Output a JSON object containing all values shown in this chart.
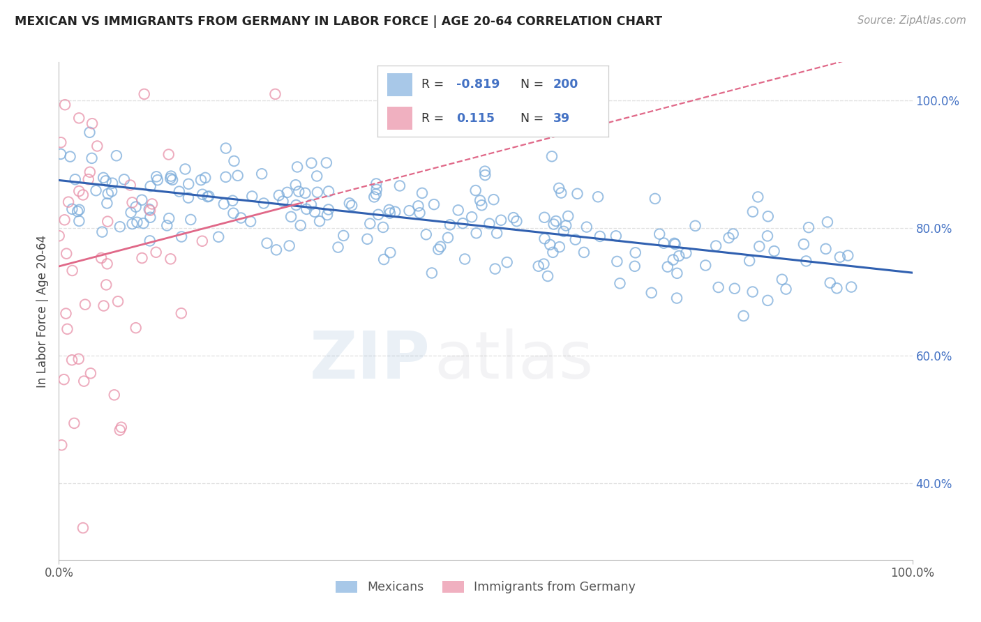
{
  "title": "MEXICAN VS IMMIGRANTS FROM GERMANY IN LABOR FORCE | AGE 20-64 CORRELATION CHART",
  "source": "Source: ZipAtlas.com",
  "ylabel": "In Labor Force | Age 20-64",
  "legend_label1": "Mexicans",
  "legend_label2": "Immigrants from Germany",
  "R1": -0.819,
  "N1": 200,
  "R2": 0.115,
  "N2": 39,
  "color_blue_fill": "#a8c8e8",
  "color_blue_edge": "#7aabda",
  "color_blue_line": "#3060b0",
  "color_pink_fill": "#f0b0c0",
  "color_pink_edge": "#e890a8",
  "color_pink_line": "#e06888",
  "color_blue_text": "#4472c4",
  "watermark_zip": "#a8c8e8",
  "watermark_atlas": "#b0b8c8",
  "bg_color": "#ffffff",
  "grid_color": "#e0e0e0",
  "ytick_vals": [
    0.4,
    0.6,
    0.8,
    1.0
  ],
  "yticks": [
    "40.0%",
    "60.0%",
    "80.0%",
    "100.0%"
  ],
  "ymin": 0.28,
  "ymax": 1.06,
  "xmin": 0.0,
  "xmax": 1.0
}
